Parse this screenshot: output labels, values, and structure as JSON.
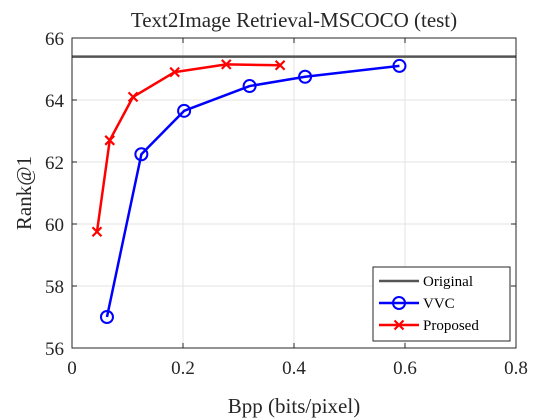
{
  "chart_data": {
    "type": "line",
    "title": "Text2Image Retrieval-MSCOCO (test)",
    "xlabel": "Bpp (bits/pixel)",
    "ylabel": "Rank@1",
    "xlim": [
      0,
      0.8
    ],
    "ylim": [
      56,
      66
    ],
    "xticks": [
      "0",
      "0.2",
      "0.4",
      "0.6",
      "0.8"
    ],
    "yticks": [
      "56",
      "58",
      "60",
      "62",
      "64",
      "66"
    ],
    "grid": true,
    "legend_position": "bottom-right",
    "series": [
      {
        "name": "Original",
        "color": "#555555",
        "marker": "none",
        "x": [
          0,
          0.8
        ],
        "y": [
          65.4,
          65.4
        ]
      },
      {
        "name": "VVC",
        "color": "#0000ff",
        "marker": "circle",
        "x": [
          0.063,
          0.125,
          0.202,
          0.32,
          0.42,
          0.59
        ],
        "y": [
          57.0,
          62.25,
          63.65,
          64.45,
          64.75,
          65.1
        ]
      },
      {
        "name": "Proposed",
        "color": "#ff0000",
        "marker": "x",
        "x": [
          0.045,
          0.068,
          0.11,
          0.185,
          0.278,
          0.375
        ],
        "y": [
          59.75,
          62.7,
          64.1,
          64.9,
          65.15,
          65.12
        ]
      }
    ]
  }
}
